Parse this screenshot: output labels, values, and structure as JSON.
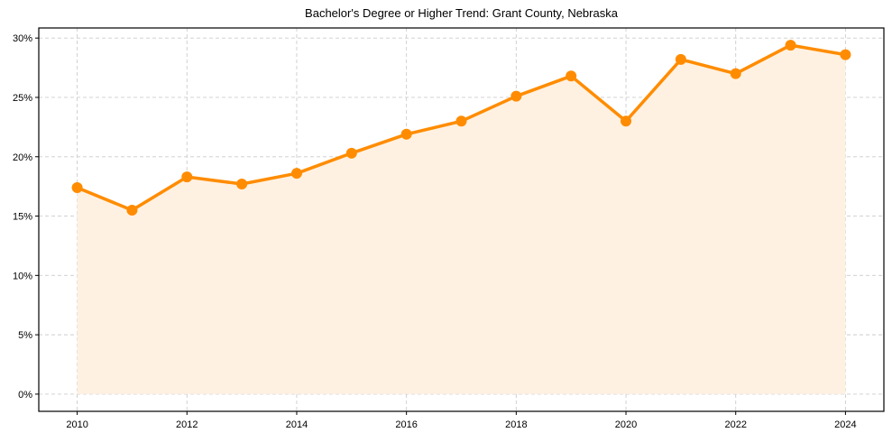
{
  "chart_data": {
    "type": "line",
    "title": "Bachelor's Degree or Higher Trend: Grant County, Nebraska",
    "xlabel": "",
    "ylabel": "",
    "x": [
      2010,
      2011,
      2012,
      2013,
      2014,
      2015,
      2016,
      2017,
      2018,
      2019,
      2020,
      2021,
      2022,
      2023,
      2024
    ],
    "series": [
      {
        "name": "Bachelor's Degree or Higher (%)",
        "values": [
          17.4,
          15.5,
          18.3,
          17.7,
          18.6,
          20.3,
          21.9,
          23.0,
          25.1,
          26.8,
          23.0,
          28.2,
          27.0,
          29.4,
          28.6
        ],
        "color": "#ff8c00",
        "fill_color": "#fff1e2",
        "marker": "circle"
      }
    ],
    "x_ticks": [
      2010,
      2012,
      2014,
      2016,
      2018,
      2020,
      2022,
      2024
    ],
    "x_tick_labels": [
      "2010",
      "2012",
      "2014",
      "2016",
      "2018",
      "2020",
      "2022",
      "2024"
    ],
    "y_ticks": [
      0,
      5,
      10,
      15,
      20,
      25,
      30
    ],
    "y_tick_labels": [
      "0%",
      "5%",
      "10%",
      "15%",
      "20%",
      "25%",
      "30%"
    ],
    "xlim": [
      2009.3,
      2024.7
    ],
    "ylim": [
      -1.45,
      30.85
    ],
    "grid": true,
    "legend": null
  }
}
